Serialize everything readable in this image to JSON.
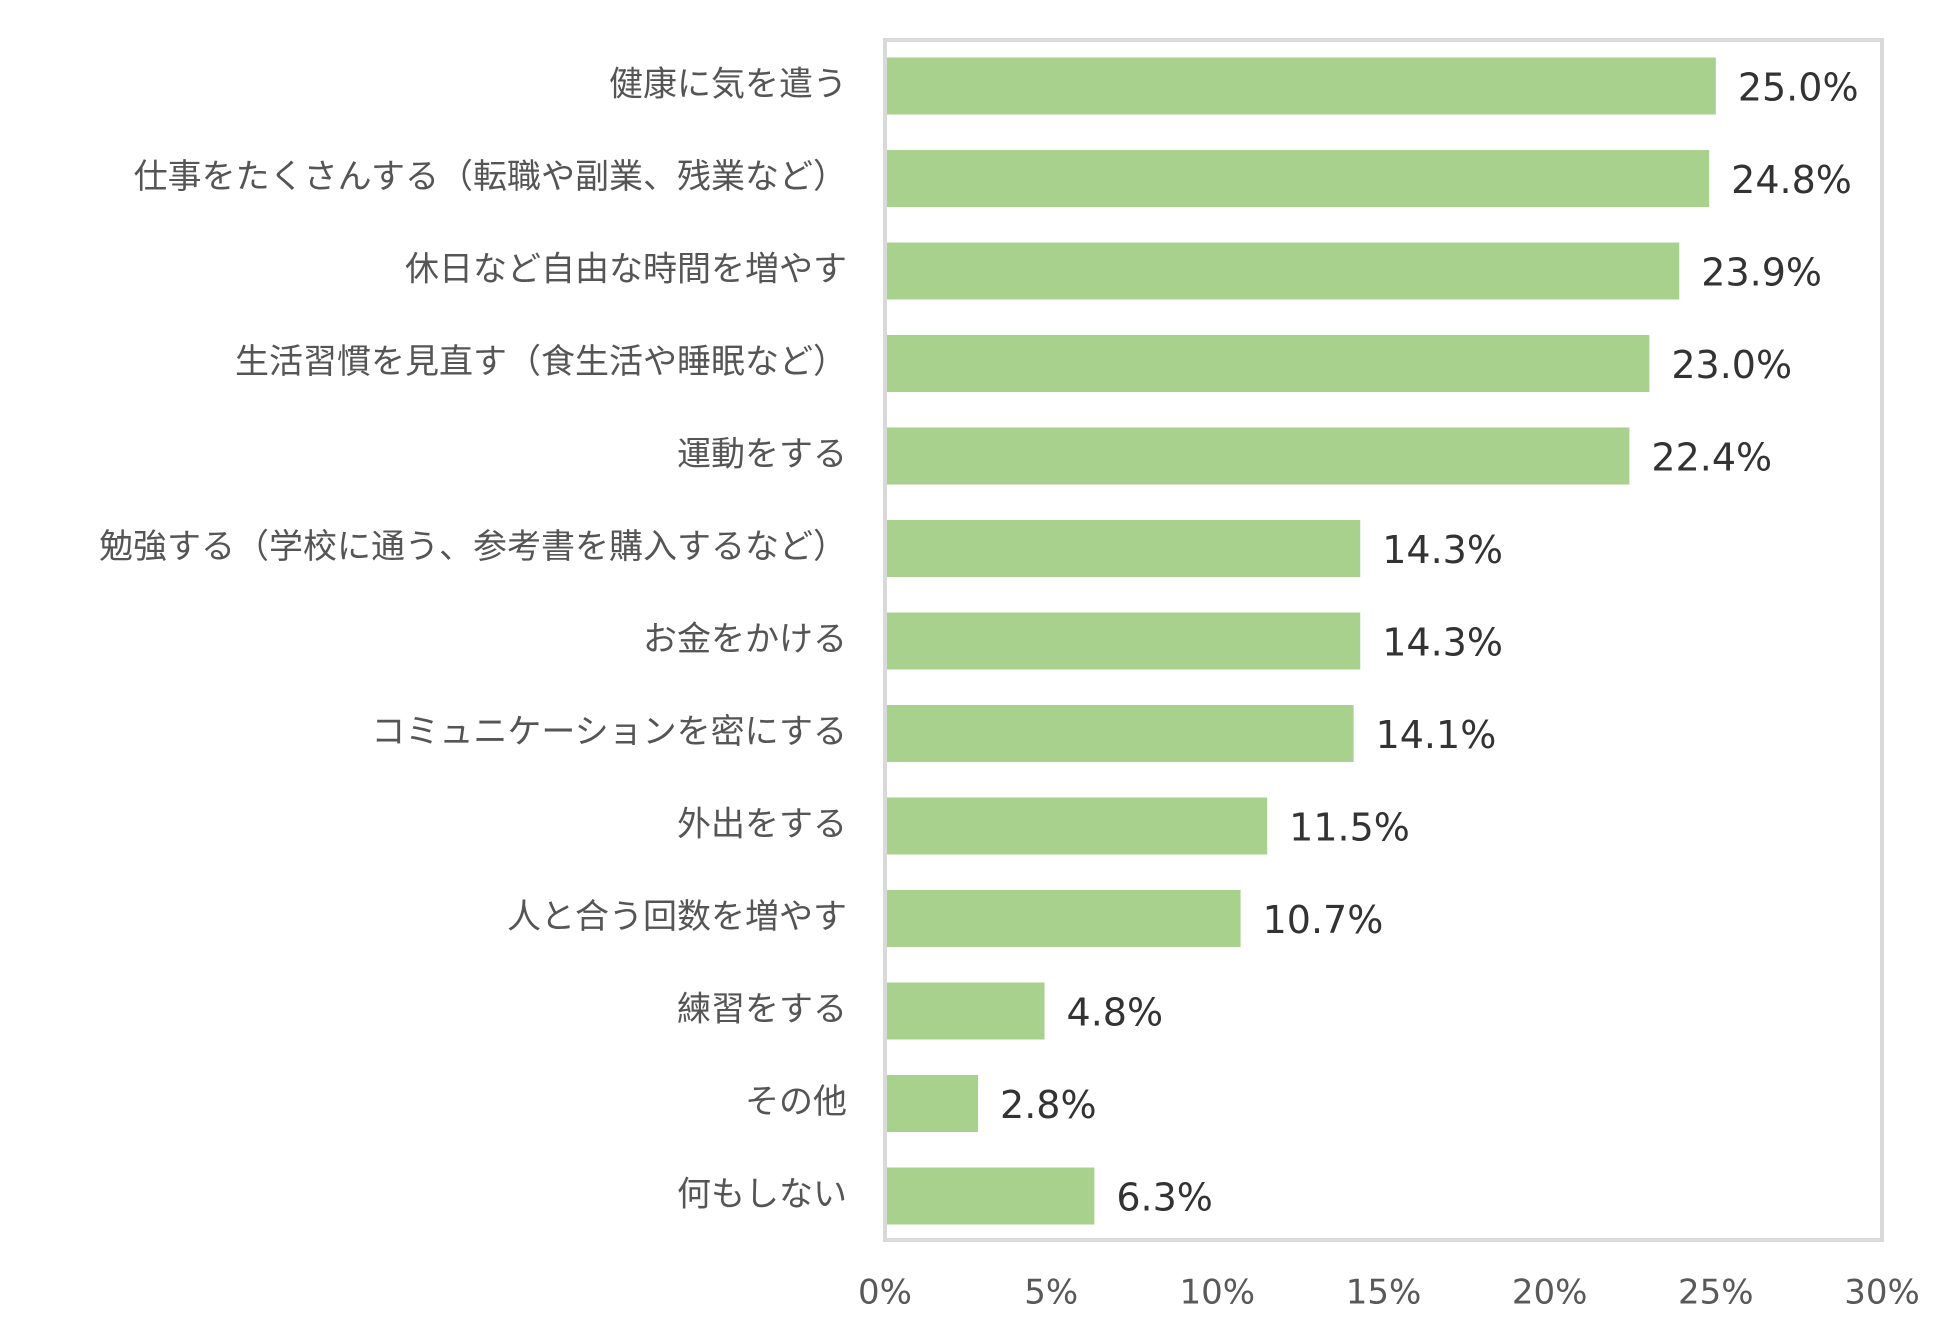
{
  "chart_data": {
    "type": "bar",
    "orientation": "horizontal",
    "categories": [
      "健康に気を遣う",
      "仕事をたくさんする（転職や副業、残業など）",
      "休日など自由な時間を増やす",
      "生活習慣を見直す（食生活や睡眠など）",
      "運動をする",
      "勉強する（学校に通う、参考書を購入するなど）",
      "お金をかける",
      "コミュニケーションを密にする",
      "外出をする",
      "人と合う回数を増やす",
      "練習をする",
      "その他",
      "何もしない"
    ],
    "values": [
      25.0,
      24.8,
      23.9,
      23.0,
      22.4,
      14.3,
      14.3,
      14.1,
      11.5,
      10.7,
      4.8,
      2.8,
      6.3
    ],
    "value_labels": [
      "25.0%",
      "24.8%",
      "23.9%",
      "23.0%",
      "22.4%",
      "14.3%",
      "14.3%",
      "14.1%",
      "11.5%",
      "10.7%",
      "4.8%",
      "2.8%",
      "6.3%"
    ],
    "x_ticks": [
      "0%",
      "5%",
      "10%",
      "15%",
      "20%",
      "25%",
      "30%"
    ],
    "xlim": [
      0,
      30
    ],
    "grid": false,
    "bar_color": "#a9d18e",
    "frame_color": "#d9d9d9"
  }
}
